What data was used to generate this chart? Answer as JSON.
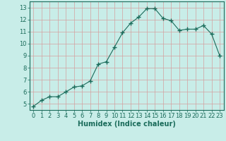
{
  "x": [
    0,
    1,
    2,
    3,
    4,
    5,
    6,
    7,
    8,
    9,
    10,
    11,
    12,
    13,
    14,
    15,
    16,
    17,
    18,
    19,
    20,
    21,
    22,
    23
  ],
  "y": [
    4.8,
    5.3,
    5.6,
    5.6,
    6.0,
    6.4,
    6.5,
    6.9,
    8.3,
    8.5,
    9.7,
    10.9,
    11.7,
    12.2,
    12.9,
    12.9,
    12.1,
    11.9,
    11.1,
    11.2,
    11.2,
    11.5,
    10.8,
    9.0
  ],
  "line_color": "#1a6b5a",
  "marker": "+",
  "marker_size": 4,
  "marker_lw": 1.0,
  "bg_color": "#c8ede8",
  "grid_color": "#d4a0a0",
  "xlabel": "Humidex (Indice chaleur)",
  "xlim": [
    -0.5,
    23.5
  ],
  "ylim": [
    4.5,
    13.5
  ],
  "yticks": [
    5,
    6,
    7,
    8,
    9,
    10,
    11,
    12,
    13
  ],
  "xticks": [
    0,
    1,
    2,
    3,
    4,
    5,
    6,
    7,
    8,
    9,
    10,
    11,
    12,
    13,
    14,
    15,
    16,
    17,
    18,
    19,
    20,
    21,
    22,
    23
  ],
  "tick_color": "#1a6b5a",
  "label_color": "#1a6b5a",
  "font_size": 6,
  "xlabel_fontsize": 7,
  "line_width": 0.8
}
